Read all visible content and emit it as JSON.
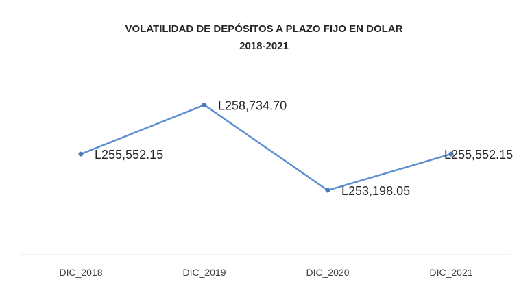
{
  "chart_data": {
    "type": "line",
    "title": "VOLATILIDAD DE DEPÓSITOS A PLAZO FIJO EN DOLAR",
    "subtitle": "2018-2021",
    "xlabel": "",
    "ylabel": "",
    "categories": [
      "DIC_2018",
      "DIC_2019",
      "DIC_2020",
      "DIC_2021"
    ],
    "values": [
      255552.15,
      258734.7,
      253198.05,
      255552.15
    ],
    "data_labels": [
      "L255,552.15",
      "L258,734.70",
      "L253,198.05",
      "L255,552.15"
    ],
    "ylim": [
      250000,
      262000
    ],
    "grid": false,
    "legend": "none",
    "line_color": "#5b8fd1",
    "marker_color": "#4a78b8"
  }
}
